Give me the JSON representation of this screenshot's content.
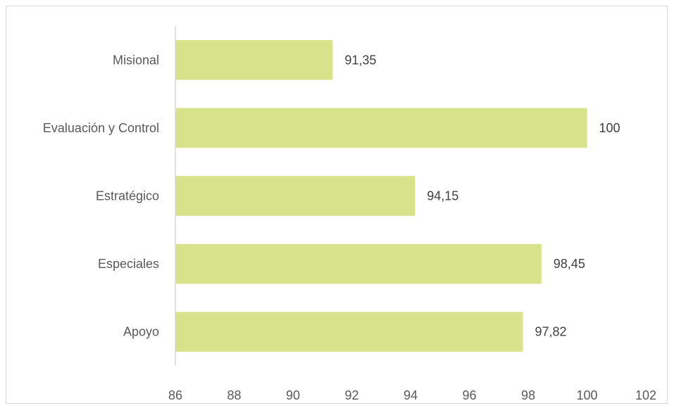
{
  "chart_data": {
    "type": "bar",
    "orientation": "horizontal",
    "categories": [
      "Misional",
      "Evaluación y Control",
      "Estratégico",
      "Especiales",
      "Apoyo"
    ],
    "values": [
      91.35,
      100,
      94.15,
      98.45,
      97.82
    ],
    "value_labels": [
      "91,35",
      "100",
      "94,15",
      "98,45",
      "97,82"
    ],
    "xlim": [
      86,
      102
    ],
    "x_ticks": [
      86,
      88,
      90,
      92,
      94,
      96,
      98,
      100,
      102
    ],
    "x_tick_labels": [
      "86",
      "88",
      "90",
      "92",
      "94",
      "96",
      "98",
      "100",
      "102"
    ],
    "title": "",
    "xlabel": "",
    "ylabel": "",
    "grid": false,
    "legend": "none",
    "bar_color": "#d7e28b",
    "axis_color": "#d9d9d9"
  }
}
